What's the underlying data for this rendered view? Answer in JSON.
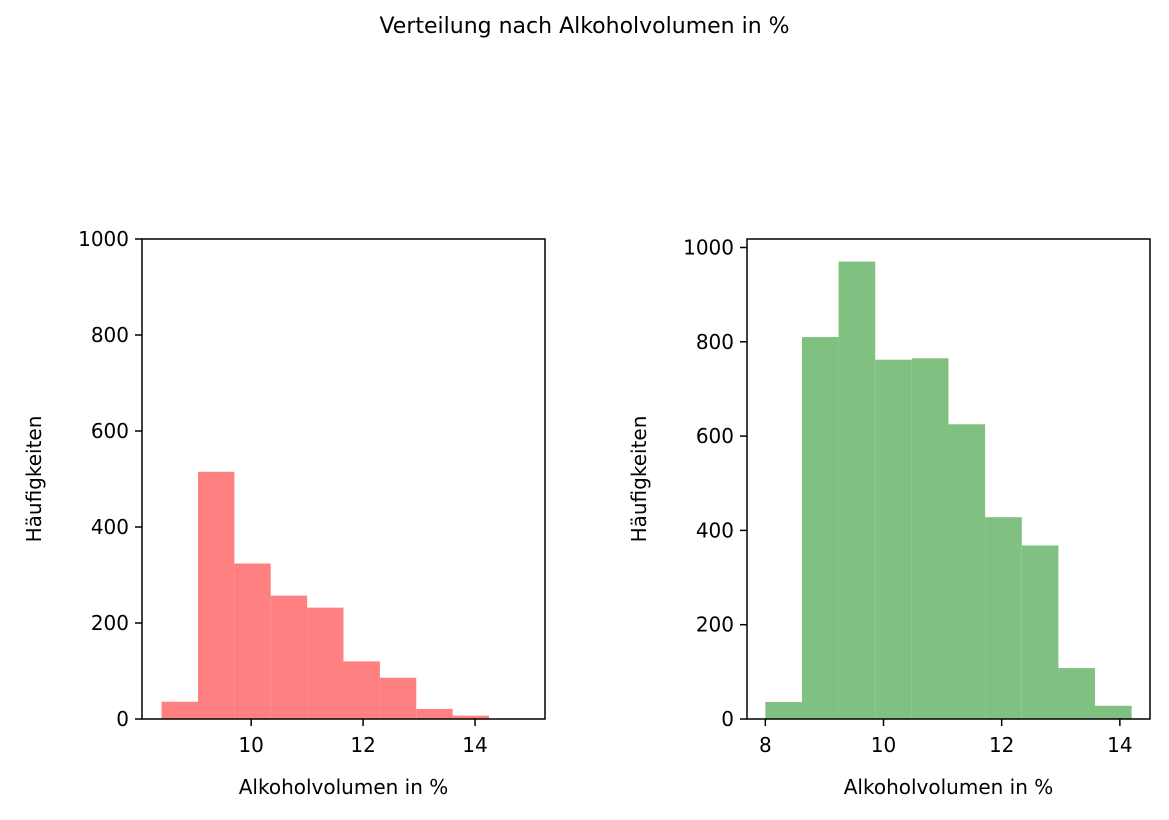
{
  "figure": {
    "suptitle": "Verteilung nach Alkoholvolumen in %"
  },
  "chart_data": [
    {
      "type": "bar",
      "histogram": true,
      "color": "#FF8080",
      "bin_edges": [
        8.4,
        9.05,
        9.7,
        10.35,
        11.0,
        11.65,
        12.3,
        12.95,
        13.6,
        14.25,
        14.9
      ],
      "values": [
        36,
        515,
        324,
        257,
        232,
        120,
        86,
        21,
        7,
        0
      ],
      "xlabel": "Alkoholvolumen in %",
      "ylabel": "Häufigkeiten",
      "xlim": [
        8.05,
        15.25
      ],
      "ylim": [
        0,
        1000
      ],
      "xticks": [
        10,
        12,
        14
      ],
      "yticks": [
        0,
        200,
        400,
        600,
        800,
        1000
      ],
      "grid": false
    },
    {
      "type": "bar",
      "histogram": true,
      "color": "#80C080",
      "bin_edges": [
        8.0,
        8.62,
        9.24,
        9.86,
        10.48,
        11.1,
        11.72,
        12.34,
        12.96,
        13.58,
        14.2
      ],
      "values": [
        36,
        810,
        970,
        762,
        765,
        625,
        428,
        368,
        108,
        28
      ],
      "xlabel": "Alkoholvolumen in %",
      "ylabel": "Häufigkeiten",
      "xlim": [
        7.69,
        14.51
      ],
      "ylim": [
        0,
        1018
      ],
      "xticks": [
        8,
        10,
        12,
        14
      ],
      "yticks": [
        0,
        200,
        400,
        600,
        800,
        1000
      ],
      "grid": false
    }
  ]
}
